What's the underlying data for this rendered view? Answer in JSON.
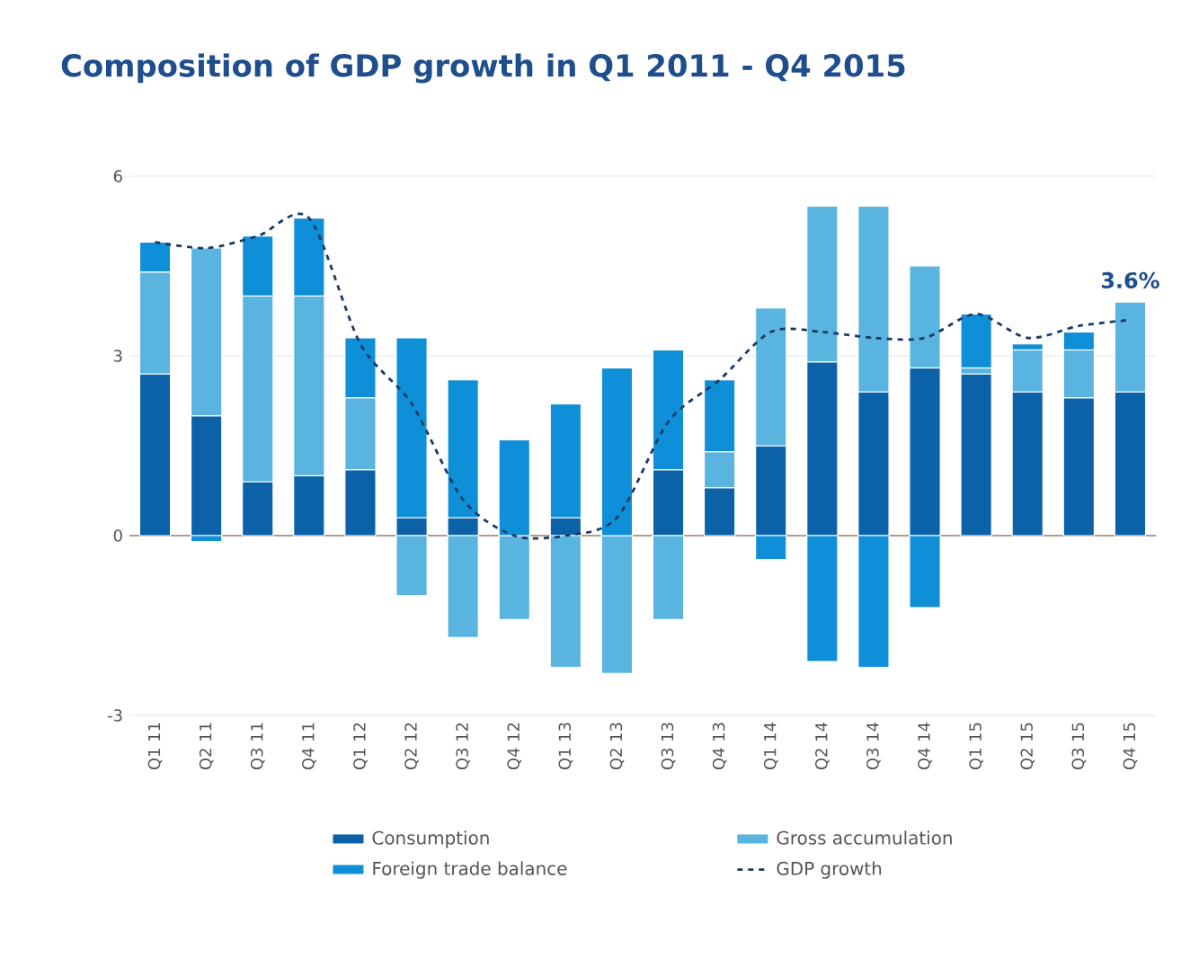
{
  "chart_data": {
    "type": "bar",
    "stacked": true,
    "title": "Composition of GDP growth in Q1 2011 - Q4 2015",
    "categories": [
      "Q1 11",
      "Q2 11",
      "Q3 11",
      "Q4 11",
      "Q1 12",
      "Q2 12",
      "Q3 12",
      "Q4 12",
      "Q1 13",
      "Q2 13",
      "Q3 13",
      "Q4 13",
      "Q1 14",
      "Q2 14",
      "Q3 14",
      "Q4 14",
      "Q1 15",
      "Q2 15",
      "Q3 15",
      "Q4 15"
    ],
    "series": [
      {
        "name": "Consumption",
        "color": "#0b62a8",
        "values": [
          2.7,
          2.0,
          0.9,
          1.0,
          1.1,
          0.3,
          0.3,
          0.0,
          0.3,
          0.0,
          1.1,
          0.8,
          1.5,
          2.9,
          2.4,
          2.8,
          2.7,
          2.4,
          2.3,
          2.4
        ]
      },
      {
        "name": "Gross accumulation",
        "color": "#5ab4e0",
        "values": [
          1.7,
          2.8,
          3.1,
          3.0,
          1.2,
          -1.0,
          -1.7,
          -1.4,
          -2.2,
          -2.3,
          -1.4,
          0.6,
          2.3,
          2.6,
          3.1,
          1.7,
          0.1,
          0.7,
          0.8,
          1.5
        ]
      },
      {
        "name": "Foreign trade balance",
        "color": "#0f8fd8",
        "values": [
          0.5,
          -0.1,
          1.0,
          1.3,
          1.0,
          3.0,
          2.3,
          1.6,
          1.9,
          2.8,
          2.0,
          1.2,
          -0.4,
          -2.1,
          -2.2,
          -1.2,
          0.9,
          0.1,
          0.3,
          0.0
        ]
      },
      {
        "name": "GDP growth",
        "type": "line",
        "line_style": "dashed",
        "color": "#1a3a66",
        "values": [
          4.9,
          4.8,
          5.0,
          5.3,
          3.2,
          2.2,
          0.6,
          0.0,
          0.0,
          0.3,
          1.9,
          2.6,
          3.4,
          3.4,
          3.3,
          3.3,
          3.7,
          3.3,
          3.5,
          3.6
        ]
      }
    ],
    "annotations": [
      {
        "text": "3.6%",
        "x": "Q4 15",
        "y": 3.6
      }
    ],
    "ref_lines": [
      {
        "axis": "y",
        "value": 0,
        "color": "#a08060"
      }
    ],
    "ylim": [
      -3,
      6
    ],
    "yticks": [
      -3,
      0,
      3,
      6
    ],
    "grid": "y",
    "legend": "bottom"
  }
}
